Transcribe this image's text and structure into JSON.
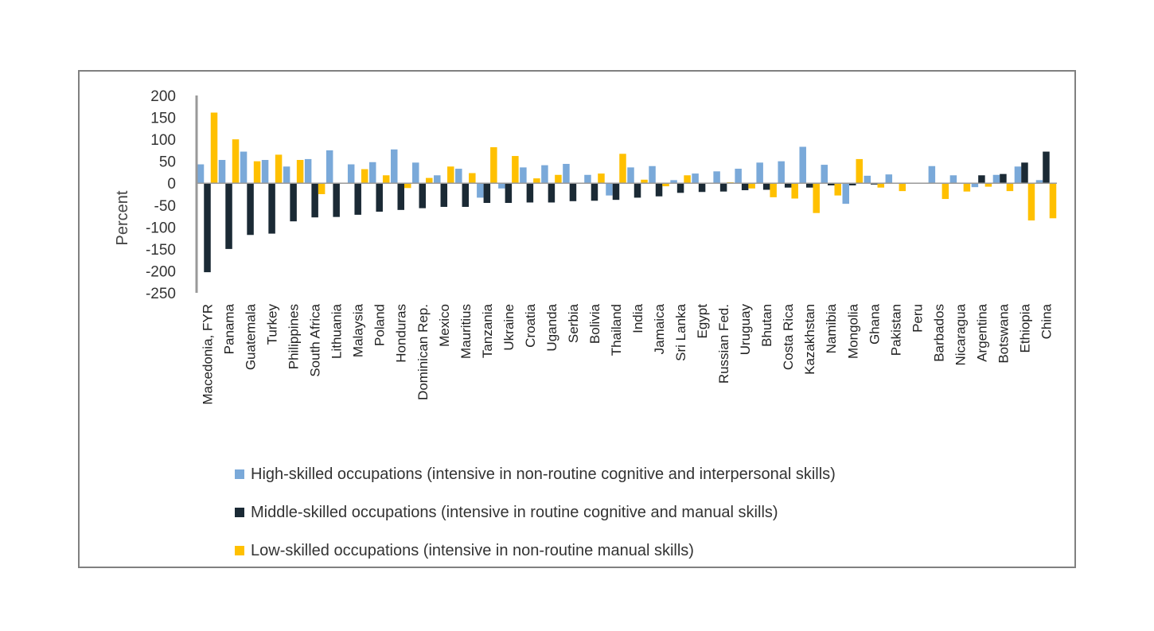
{
  "chart_data": {
    "type": "bar",
    "ylabel": "Percent",
    "ylim": [
      -250,
      200
    ],
    "yticks": [
      200,
      150,
      100,
      50,
      0,
      -50,
      -100,
      -150,
      -200,
      -250
    ],
    "grid": false,
    "legend_position": "bottom",
    "categories": [
      "Macedonia, FYR",
      "Panama",
      "Guatemala",
      "Turkey",
      "Philippines",
      "South Africa",
      "Lithuania",
      "Malaysia",
      "Poland",
      "Honduras",
      "Dominican Rep.",
      "Mexico",
      "Mauritius",
      "Tanzania",
      "Ukraine",
      "Croatia",
      "Uganda",
      "Serbia",
      "Bolivia",
      "Thailand",
      "India",
      "Jamaica",
      "Sri Lanka",
      "Egypt",
      "Russian Fed.",
      "Uruguay",
      "Bhutan",
      "Costa Rica",
      "Kazakhstan",
      "Namibia",
      "Mongolia",
      "Ghana",
      "Pakistan",
      "Peru",
      "Barbados",
      "Nicaragua",
      "Argentina",
      "Botswana",
      "Ethiopia",
      "China"
    ],
    "series": [
      {
        "name": "High-skilled occupations (intensive in non-routine cognitive and interpersonal skills)",
        "color": "#7aa9d9",
        "values": [
          43,
          53,
          72,
          53,
          38,
          55,
          75,
          43,
          48,
          77,
          47,
          18,
          33,
          -33,
          -12,
          36,
          41,
          44,
          19,
          -28,
          36,
          39,
          7,
          22,
          27,
          33,
          47,
          50,
          83,
          42,
          -47,
          17,
          20,
          0,
          39,
          18,
          -9,
          19,
          38,
          7
        ]
      },
      {
        "name": "Middle-skilled occupations (intensive in routine cognitive and manual skills)",
        "color": "#1b2a35",
        "values": [
          -203,
          -150,
          -118,
          -115,
          -87,
          -78,
          -77,
          -72,
          -65,
          -61,
          -57,
          -54,
          -54,
          -45,
          -45,
          -44,
          -44,
          -41,
          -40,
          -38,
          -33,
          -30,
          -22,
          -20,
          -19,
          -16,
          -15,
          -10,
          -10,
          -5,
          -5,
          -3,
          0,
          0,
          0,
          0,
          18,
          21,
          47,
          72
        ]
      },
      {
        "name": "Low-skilled occupations (intensive in non-routine manual skills)",
        "color": "#ffc000",
        "values": [
          161,
          100,
          50,
          65,
          53,
          -25,
          0,
          32,
          18,
          -11,
          12,
          38,
          23,
          82,
          62,
          11,
          19,
          0,
          22,
          67,
          8,
          -7,
          18,
          0,
          2,
          -12,
          -32,
          -35,
          -68,
          -28,
          55,
          -10,
          -18,
          0,
          -36,
          -19,
          -8,
          -18,
          -85,
          -80
        ]
      }
    ]
  }
}
